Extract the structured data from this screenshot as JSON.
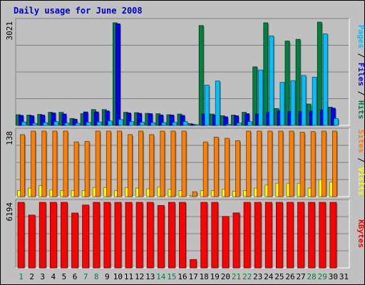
{
  "chart_data": {
    "type": "bar",
    "title": "Daily usage for June 2008",
    "categories": [
      "1",
      "2",
      "3",
      "4",
      "5",
      "6",
      "7",
      "8",
      "9",
      "10",
      "11",
      "12",
      "13",
      "14",
      "15",
      "16",
      "17",
      "18",
      "19",
      "20",
      "21",
      "22",
      "23",
      "24",
      "25",
      "26",
      "27",
      "28",
      "29",
      "30",
      "31"
    ],
    "weekend_days": [
      "1",
      "7",
      "8",
      "14",
      "15",
      "21",
      "22",
      "28",
      "29"
    ],
    "panels": [
      {
        "id": "hits-files-pages",
        "ymax": 3021,
        "ymax_label": "3021",
        "series": [
          {
            "name": "Hits",
            "color": "#008040",
            "values": [
              310,
              300,
              320,
              380,
              380,
              200,
              340,
              460,
              460,
              2980,
              380,
              370,
              350,
              340,
              310,
              330,
              50,
              2900,
              330,
              280,
              300,
              380,
              1700,
              2980,
              490,
              2450,
              2500,
              620,
              3000,
              530
            ]
          },
          {
            "name": "Files",
            "color": "#0000ff",
            "values": [
              290,
              280,
              300,
              360,
              330,
              180,
              390,
              390,
              420,
              2950,
              360,
              350,
              340,
              300,
              300,
              290,
              30,
              330,
              300,
              250,
              280,
              340,
              330,
              380,
              420,
              400,
              400,
              420,
              450,
              500
            ]
          },
          {
            "name": "Pages",
            "color": "#00c0ff",
            "values": [
              100,
              60,
              80,
              110,
              70,
              60,
              90,
              100,
              130,
              170,
              110,
              90,
              80,
              80,
              90,
              110,
              20,
              1170,
              1290,
              30,
              70,
              110,
              1610,
              2600,
              1250,
              1300,
              1450,
              1400,
              2660,
              200
            ]
          }
        ],
        "side_labels": [
          {
            "text": "Pages",
            "color": "#00c0ff"
          },
          {
            "text": " / ",
            "color": "#000000"
          },
          {
            "text": "Files",
            "color": "#0000ff"
          },
          {
            "text": " / ",
            "color": "#000000"
          },
          {
            "text": "Hits",
            "color": "#008040"
          }
        ]
      },
      {
        "id": "visits-sites",
        "ymax": 138,
        "ymax_label": "138",
        "series": [
          {
            "name": "Visits",
            "color": "#ffff00",
            "values": [
              10,
              14,
              18,
              11,
              10,
              10,
              10,
              15,
              15,
              10,
              15,
              14,
              13,
              16,
              12,
              10,
              2,
              10,
              10,
              12,
              9,
              10,
              14,
              19,
              22,
              22,
              22,
              14,
              28,
              24
            ]
          },
          {
            "name": "Sites",
            "color": "#ff8000",
            "values": [
              102,
              112,
              122,
              124,
              110,
              90,
              91,
              116,
              134,
              121,
              102,
              115,
              102,
              113,
              113,
              108,
              8,
              90,
              98,
              96,
              92,
              128,
              109,
              143,
              120,
              114,
              106,
              107,
              124,
              122
            ]
          }
        ],
        "side_labels": [
          {
            "text": "Sites",
            "color": "#ff8000"
          },
          {
            "text": " / ",
            "color": "#000000"
          },
          {
            "text": "Visits",
            "color": "#ffff00"
          }
        ]
      },
      {
        "id": "kbytes",
        "ymax": 6194,
        "ymax_label": "6194",
        "series": [
          {
            "name": "KBytes",
            "color": "#ff0000",
            "values": [
              4940,
              3900,
              5990,
              6040,
              6040,
              4050,
              4640,
              8220,
              5940,
              7650,
              8370,
              7160,
              5540,
              4610,
              4850,
              5220,
              620,
              7880,
              8090,
              3800,
              4060,
              5080,
              5040,
              7830,
              7870,
              7750,
              6640,
              6120,
              7660,
              5810
            ]
          }
        ],
        "side_labels": [
          {
            "text": "KBytes",
            "color": "#ff0000"
          }
        ]
      }
    ]
  }
}
